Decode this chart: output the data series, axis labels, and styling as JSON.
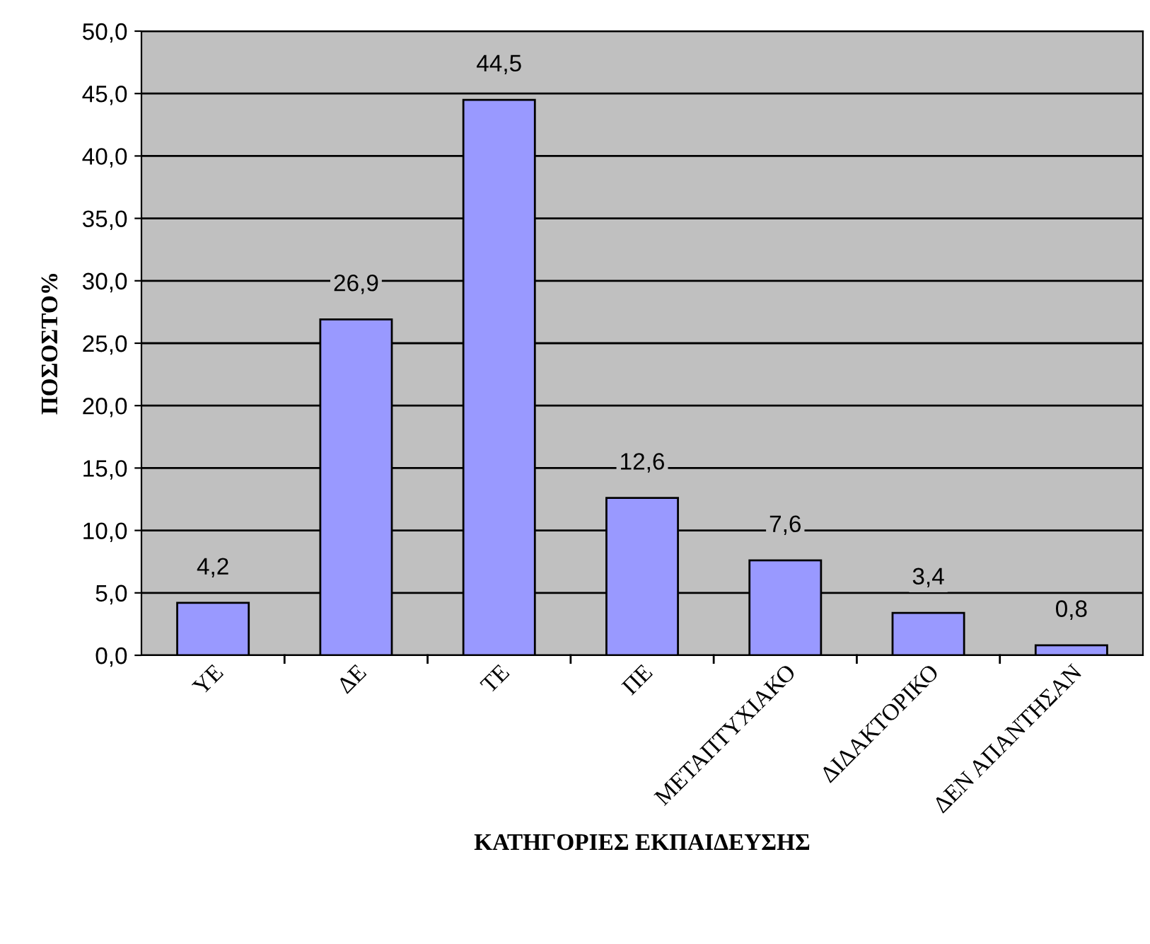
{
  "chart_data": {
    "type": "bar",
    "xlabel": "ΚΑΤΗΓΟΡΙΕΣ ΕΚΠΑΙΔΕΥΣΗΣ",
    "ylabel": "ΠΟΣΟΣΤΟ%",
    "categories": [
      "ΥΕ",
      "ΔΕ",
      "ΤΕ",
      "ΠΕ",
      "ΜΕΤΑΠΤΥΧΙΑΚΟ",
      "ΔΙΔΑΚΤΟΡΙΚΟ",
      "ΔΕΝ ΑΠΑΝΤΗΣΑΝ"
    ],
    "values": [
      4.2,
      26.9,
      44.5,
      12.6,
      7.6,
      3.4,
      0.8
    ],
    "value_labels": [
      "4,2",
      "26,9",
      "44,5",
      "12,6",
      "7,6",
      "3,4",
      "0,8"
    ],
    "color": "#9999ff",
    "ylim": [
      0,
      50
    ],
    "yticks": [
      {
        "value": 0,
        "label": "0,0"
      },
      {
        "value": 5,
        "label": "5,0"
      },
      {
        "value": 10,
        "label": "10,0"
      },
      {
        "value": 15,
        "label": "15,0"
      },
      {
        "value": 20,
        "label": "20,0"
      },
      {
        "value": 25,
        "label": "25,0"
      },
      {
        "value": 30,
        "label": "30,0"
      },
      {
        "value": 35,
        "label": "35,0"
      },
      {
        "value": 40,
        "label": "40,0"
      },
      {
        "value": 45,
        "label": "45,0"
      },
      {
        "value": 50,
        "label": "50,0"
      }
    ],
    "grid": "y",
    "legend": false
  }
}
